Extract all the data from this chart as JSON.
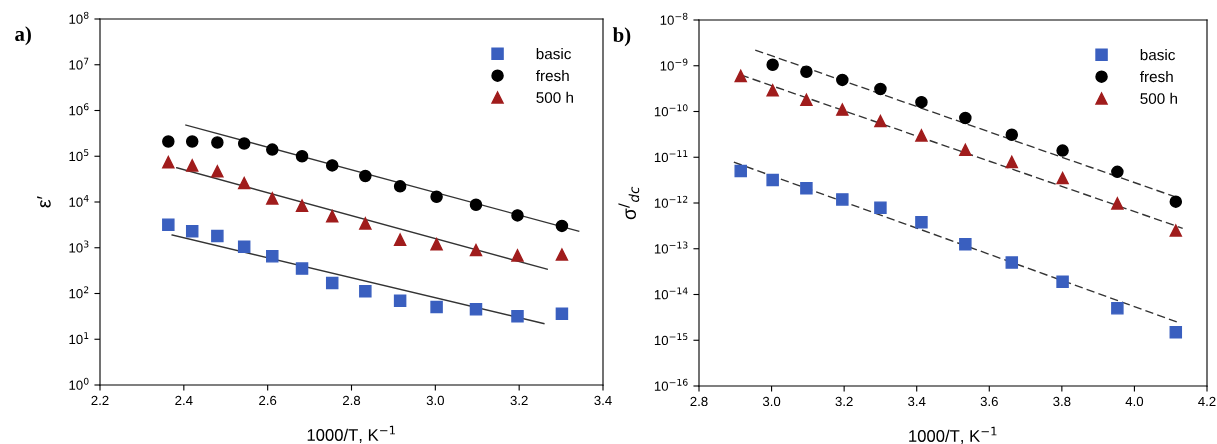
{
  "chart_data": [
    {
      "type": "scatter",
      "title": "a)",
      "xlabel": "1000/T, K$^{−1}$",
      "ylabel": "ε′",
      "log": "y",
      "grid": false,
      "legend": "top right",
      "xlim": [
        2.2,
        3.4
      ],
      "xticks": [
        {
          "value": 2.2,
          "label": "2.2"
        },
        {
          "value": 2.4,
          "label": "2.4"
        },
        {
          "value": 2.6,
          "label": "2.6"
        },
        {
          "value": 2.8,
          "label": "2.8"
        },
        {
          "value": 3.0,
          "label": "3.0"
        },
        {
          "value": 3.2,
          "label": "3.2"
        },
        {
          "value": 3.4,
          "label": "3.4"
        }
      ],
      "ylim": [
        1,
        100000000
      ],
      "yticks": [
        {
          "value": 1,
          "label": "10$^{0}$"
        },
        {
          "value": 10,
          "label": "10$^{1}$"
        },
        {
          "value": 100,
          "label": "10$^{2}$"
        },
        {
          "value": 1000,
          "label": "10$^{3}$"
        },
        {
          "value": 10000,
          "label": "10$^{4}$"
        },
        {
          "value": 100000,
          "label": "10$^{5}$"
        },
        {
          "value": 1000000,
          "label": "10$^{6}$"
        },
        {
          "value": 10000000,
          "label": "10$^{7}$"
        },
        {
          "value": 100000000,
          "label": "10$^{8}$"
        }
      ],
      "series": [
        {
          "name": "basic",
          "color": "#3a5fbf",
          "marker": "square",
          "x": [
            2.363,
            2.42,
            2.48,
            2.544,
            2.611,
            2.682,
            2.754,
            2.833,
            2.916,
            3.003,
            3.097,
            3.196,
            3.302
          ],
          "values": [
            3200,
            2300,
            1800,
            1050,
            650,
            350,
            170,
            112,
            69,
            51,
            45,
            32,
            36
          ]
        },
        {
          "name": "fresh",
          "color": "#000000",
          "marker": "circle",
          "x": [
            2.363,
            2.42,
            2.48,
            2.544,
            2.611,
            2.682,
            2.754,
            2.833,
            2.916,
            3.003,
            3.097,
            3.196,
            3.302
          ],
          "values": [
            210000,
            210000,
            200000,
            190000,
            140000,
            100000,
            63000,
            37000,
            22000,
            13000,
            8700,
            5100,
            3000
          ]
        },
        {
          "name": "500 h",
          "color": "#a01c1c",
          "marker": "triangle",
          "x": [
            2.363,
            2.42,
            2.48,
            2.544,
            2.611,
            2.682,
            2.754,
            2.833,
            2.916,
            3.003,
            3.097,
            3.196,
            3.302
          ],
          "values": [
            74000,
            63000,
            47000,
            26000,
            12000,
            8300,
            4900,
            3400,
            1500,
            1200,
            890,
            680,
            710
          ]
        },
        {
          "type": "line",
          "color": "#333333",
          "line_style": "solid",
          "x": [
            2.405,
            3.342
          ],
          "values": [
            480000,
            2300
          ]
        },
        {
          "type": "line",
          "color": "#333333",
          "line_style": "solid",
          "x": [
            2.383,
            3.267
          ],
          "values": [
            56000,
            340
          ]
        },
        {
          "type": "line",
          "color": "#333333",
          "line_style": "solid",
          "x": [
            2.372,
            3.259
          ],
          "values": [
            1900,
            22
          ]
        }
      ]
    },
    {
      "type": "scatter",
      "title": "b)",
      "xlabel": "1000/T, K$^{−1}$",
      "ylabel": "σ$^{/}$$_{dc}$",
      "log": "y",
      "grid": false,
      "legend": "top right",
      "xlim": [
        2.8,
        4.2
      ],
      "xticks": [
        {
          "value": 2.8,
          "label": "2.8"
        },
        {
          "value": 3.0,
          "label": "3.0"
        },
        {
          "value": 3.2,
          "label": "3.2"
        },
        {
          "value": 3.4,
          "label": "3.4"
        },
        {
          "value": 3.6,
          "label": "3.6"
        },
        {
          "value": 3.8,
          "label": "3.8"
        },
        {
          "value": 4.0,
          "label": "4.0"
        },
        {
          "value": 4.2,
          "label": "4.2"
        }
      ],
      "ylim": [
        1e-16,
        1e-08
      ],
      "yticks": [
        {
          "value": 1e-16,
          "label": "10$^{−16}$"
        },
        {
          "value": 1e-15,
          "label": "10$^{−15}$"
        },
        {
          "value": 1e-14,
          "label": "10$^{−14}$"
        },
        {
          "value": 1e-13,
          "label": "10$^{−13}$"
        },
        {
          "value": 1e-12,
          "label": "10$^{−12}$"
        },
        {
          "value": 1e-11,
          "label": "10$^{−11}$"
        },
        {
          "value": 1e-10,
          "label": "10$^{−10}$"
        },
        {
          "value": 1e-09,
          "label": "10$^{−9}$"
        },
        {
          "value": 1e-08,
          "label": "10$^{−8}$"
        }
      ],
      "series": [
        {
          "name": "basic",
          "color": "#3a5fbf",
          "marker": "square",
          "x": [
            2.915,
            3.003,
            3.096,
            3.195,
            3.3,
            3.413,
            3.534,
            3.662,
            3.802,
            3.953,
            4.114
          ],
          "values": [
            5e-12,
            3.2e-12,
            2.1e-12,
            1.2e-12,
            7.9e-13,
            3.8e-13,
            1.26e-13,
            5e-14,
            1.9e-14,
            5e-15,
            1.5e-15
          ]
        },
        {
          "name": "fresh",
          "color": "#000000",
          "marker": "circle",
          "x": [
            3.003,
            3.096,
            3.195,
            3.3,
            3.413,
            3.534,
            3.662,
            3.802,
            3.953,
            4.114
          ],
          "values": [
            1.05e-09,
            7.4e-10,
            4.9e-10,
            3.1e-10,
            1.6e-10,
            7.2e-11,
            3.1e-11,
            1.4e-11,
            4.8e-12,
            1.07e-12
          ]
        },
        {
          "name": "500 h",
          "color": "#a01c1c",
          "marker": "triangle",
          "x": [
            2.915,
            3.003,
            3.096,
            3.195,
            3.3,
            3.413,
            3.534,
            3.662,
            3.802,
            3.953,
            4.114
          ],
          "values": [
            6e-10,
            2.9e-10,
            1.8e-10,
            1.1e-10,
            6.2e-11,
            3e-11,
            1.45e-11,
            7.9e-12,
            3.5e-12,
            9.8e-13,
            2.5e-13
          ]
        },
        {
          "type": "line",
          "color": "#333333",
          "line_style": "dashed",
          "x": [
            2.955,
            4.12
          ],
          "values": [
            2.2e-09,
            1.3e-12
          ]
        },
        {
          "type": "line",
          "color": "#333333",
          "line_style": "dashed",
          "x": [
            2.915,
            4.133
          ],
          "values": [
            6.3e-10,
            2.8e-13
          ]
        },
        {
          "type": "line",
          "color": "#333333",
          "line_style": "dashed",
          "x": [
            2.896,
            4.118
          ],
          "values": [
            7.8e-12,
            2.5e-15
          ]
        }
      ]
    }
  ]
}
